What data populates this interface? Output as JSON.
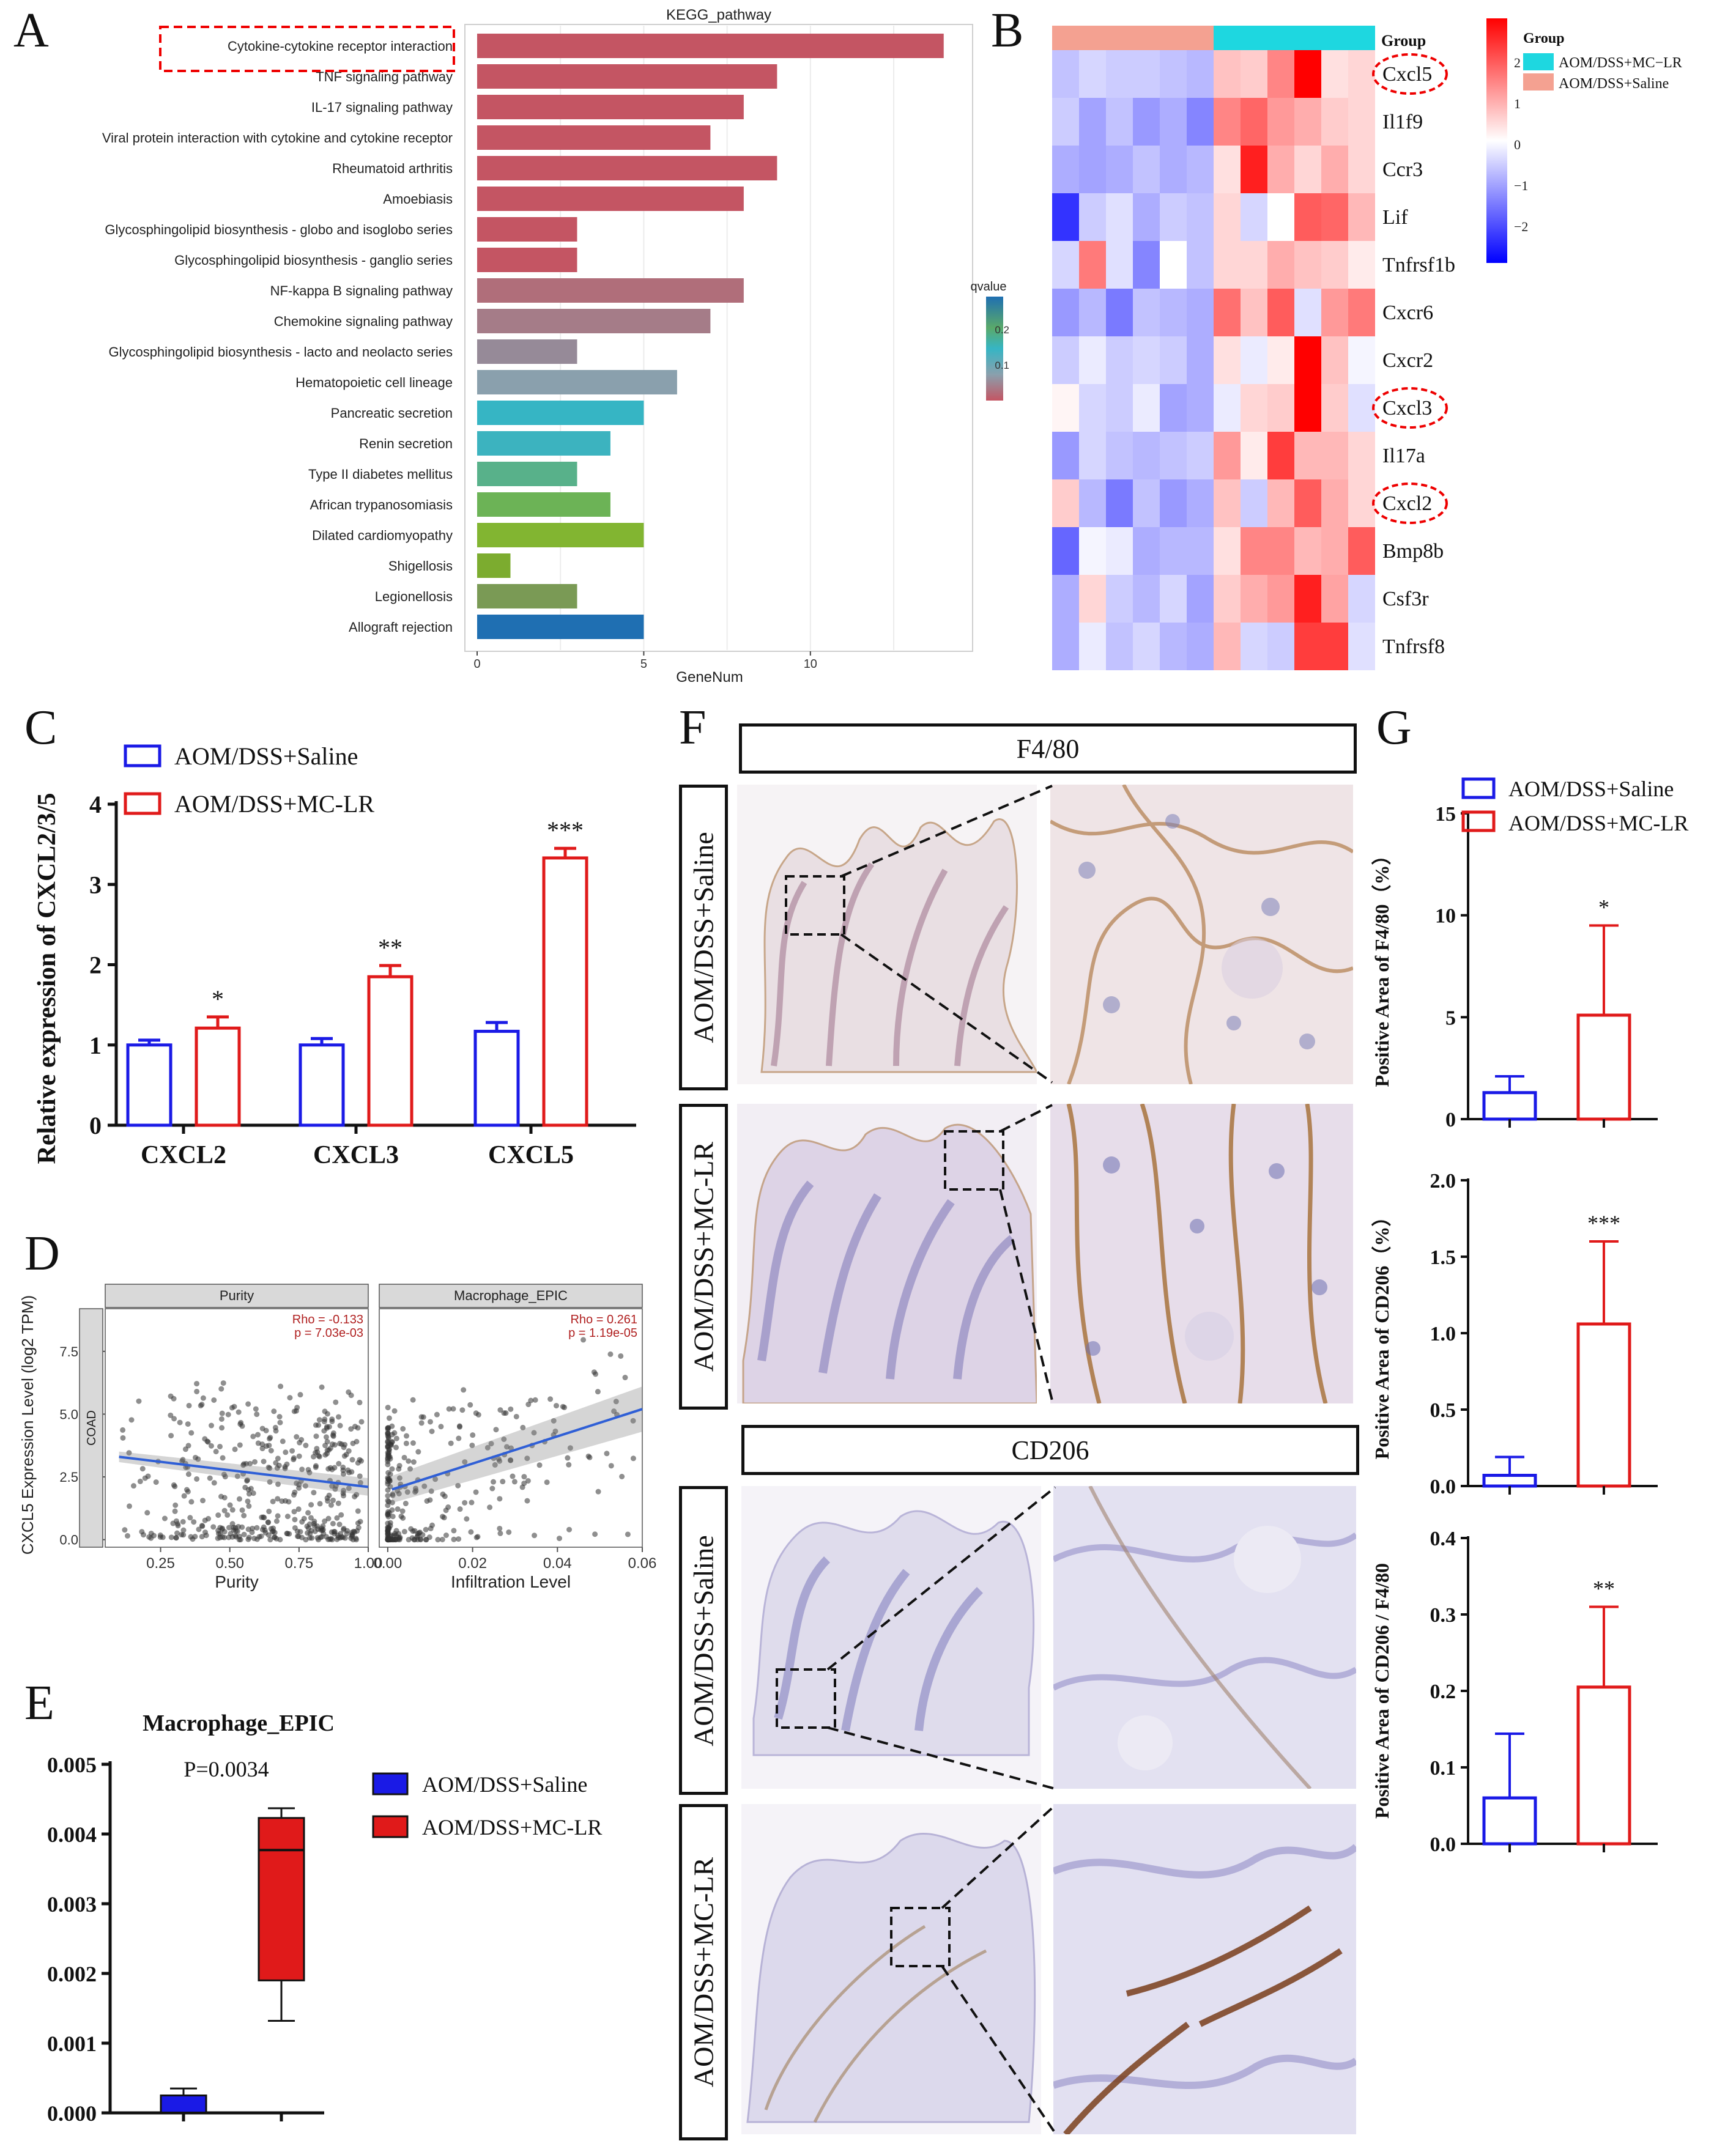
{
  "panels": {
    "A": "A",
    "B": "B",
    "C": "C",
    "D": "D",
    "E": "E",
    "F": "F",
    "G": "G"
  },
  "colors": {
    "saline_blue": "#1a1ae6",
    "mclr_red": "#e01a1a",
    "heat_high": "#ff0000",
    "heat_low": "#0000ff",
    "group_saline": "#f4a191",
    "group_mclr": "#1ed7e0"
  },
  "chart_data": [
    {
      "id": "A",
      "type": "bar",
      "orientation": "horizontal",
      "title": "KEGG_pathway",
      "xlabel": "GeneNum",
      "xticks": [
        "0",
        "5",
        "10"
      ],
      "xlim": [
        0,
        14.5
      ],
      "legend_title": "qvalue",
      "legend_ticks": [
        "0.2",
        "0.1"
      ],
      "categories": [
        "Cytokine-cytokine receptor interaction",
        "TNF signaling pathway",
        "IL-17 signaling pathway",
        "Viral protein interaction with cytokine and cytokine receptor",
        "Rheumatoid arthritis",
        "Amoebiasis",
        "Glycosphingolipid biosynthesis - globo and isoglobo series",
        "Glycosphingolipid biosynthesis - ganglio series",
        "NF-kappa B signaling pathway",
        "Chemokine signaling pathway",
        "Glycosphingolipid biosynthesis - lacto and neolacto series",
        "Hematopoietic cell lineage",
        "Pancreatic secretion",
        "Renin secretion",
        "Type II diabetes mellitus",
        "African trypanosomiasis",
        "Dilated cardiomyopathy",
        "Shigellosis",
        "Legionellosis",
        "Allograft rejection"
      ],
      "values": [
        14,
        9,
        8,
        7,
        9,
        8,
        3,
        3,
        8,
        7,
        3,
        6,
        5,
        4,
        3,
        4,
        5,
        1,
        3,
        5
      ],
      "bar_colors": [
        "#c45563",
        "#c45563",
        "#c45563",
        "#c45563",
        "#c45563",
        "#c45563",
        "#c45563",
        "#c45563",
        "#b06e7a",
        "#a57c88",
        "#968a98",
        "#8aa0ad",
        "#36b5c4",
        "#3cb3bf",
        "#58b18a",
        "#6cb356",
        "#82b531",
        "#7cac2f",
        "#7a9a55",
        "#1f6fb2"
      ],
      "highlighted": "Cytokine-cytokine receptor interaction"
    },
    {
      "id": "B",
      "type": "heatmap",
      "group_label": "Group",
      "legend_title": "Group",
      "groups": [
        "AOM/DSS+MC−LR",
        "AOM/DSS+Saline"
      ],
      "scale_ticks": [
        "2",
        "1",
        "0",
        "−1",
        "−2"
      ],
      "rows": [
        "Cxcl5",
        "Il1f9",
        "Ccr3",
        "Lif",
        "Tnfrsf1b",
        "Cxcr6",
        "Cxcr2",
        "Cxcl3",
        "Il17a",
        "Cxcl2",
        "Bmp8b",
        "Csf3r",
        "Tnfrsf8"
      ],
      "circled_rows": [
        "Cxcl5",
        "Cxcl3",
        "Cxcl2"
      ],
      "column_groups": [
        "AOM/DSS+Saline",
        "AOM/DSS+Saline",
        "AOM/DSS+Saline",
        "AOM/DSS+Saline",
        "AOM/DSS+Saline",
        "AOM/DSS+Saline",
        "AOM/DSS+MC−LR",
        "AOM/DSS+MC−LR",
        "AOM/DSS+MC−LR",
        "AOM/DSS+MC−LR",
        "AOM/DSS+MC−LR",
        "AOM/DSS+MC−LR"
      ],
      "values": [
        [
          -0.6,
          -0.4,
          -0.5,
          -0.5,
          -0.6,
          -0.7,
          0.6,
          0.5,
          1.2,
          2.5,
          0.3,
          0.4
        ],
        [
          -0.5,
          -0.9,
          -0.6,
          -1.0,
          -0.8,
          -1.2,
          1.2,
          1.5,
          1.0,
          0.8,
          0.5,
          0.4
        ],
        [
          -0.8,
          -0.9,
          -0.8,
          -0.6,
          -0.8,
          -0.7,
          0.3,
          2.2,
          0.8,
          0.4,
          0.8,
          0.4
        ],
        [
          -2.0,
          -0.5,
          -0.3,
          -0.8,
          -0.5,
          -0.6,
          0.4,
          -0.4,
          0.0,
          1.6,
          1.5,
          0.7
        ],
        [
          -0.4,
          1.3,
          -0.3,
          -1.2,
          0.0,
          -0.6,
          0.4,
          0.4,
          0.8,
          0.6,
          0.5,
          0.2
        ],
        [
          -1.0,
          -0.7,
          -1.3,
          -0.6,
          -0.7,
          -0.8,
          1.4,
          0.6,
          1.6,
          -0.3,
          1.0,
          1.3
        ],
        [
          -0.5,
          -0.2,
          -0.5,
          -0.4,
          -0.5,
          -0.8,
          0.3,
          -0.2,
          0.2,
          2.5,
          0.6,
          -0.1
        ],
        [
          0.1,
          -0.4,
          -0.5,
          -0.2,
          -0.9,
          -0.8,
          -0.2,
          0.4,
          0.5,
          2.6,
          0.5,
          -0.3
        ],
        [
          -1.0,
          -0.4,
          -0.6,
          -0.7,
          -0.6,
          -0.5,
          1.0,
          0.2,
          1.9,
          0.7,
          0.7,
          0.4
        ],
        [
          0.5,
          -0.7,
          -1.3,
          -0.6,
          -1.0,
          -0.8,
          0.6,
          -0.5,
          0.7,
          1.6,
          0.8,
          0.4
        ],
        [
          -1.5,
          -0.1,
          -0.2,
          -0.8,
          -0.7,
          -0.7,
          0.3,
          1.2,
          1.2,
          0.7,
          0.8,
          1.6
        ],
        [
          -0.8,
          0.4,
          -0.5,
          -0.7,
          -0.4,
          -0.9,
          0.5,
          0.8,
          1.0,
          2.2,
          0.9,
          -0.4
        ],
        [
          -0.8,
          -0.2,
          -0.6,
          -0.4,
          -0.7,
          -0.8,
          0.7,
          -0.4,
          -0.5,
          1.9,
          1.9,
          -0.3
        ]
      ]
    },
    {
      "id": "C",
      "type": "bar",
      "ylabel": "Relative expression of CXCL2/3/5",
      "ylim": [
        0,
        4
      ],
      "yticks": [
        "0",
        "1",
        "2",
        "3",
        "4"
      ],
      "categories": [
        "CXCL2",
        "CXCL3",
        "CXCL5"
      ],
      "series": [
        {
          "name": "AOM/DSS+Saline",
          "values": [
            1.0,
            1.0,
            1.17
          ],
          "errors": [
            0.06,
            0.08,
            0.11
          ]
        },
        {
          "name": "AOM/DSS+MC-LR",
          "values": [
            1.21,
            1.85,
            3.33
          ],
          "errors": [
            0.14,
            0.14,
            0.12
          ]
        }
      ],
      "significance": [
        "*",
        "**",
        "***"
      ]
    },
    {
      "id": "D",
      "type": "scatter",
      "ylabel": "CXCL5 Expression Level (log2 TPM)",
      "row_strip": "COAD",
      "yticks": [
        "7.5",
        "5.0",
        "2.5",
        "0.0"
      ],
      "ylim": [
        -0.3,
        9.2
      ],
      "facets": [
        {
          "name": "Purity",
          "xlabel": "Purity",
          "rho": "Rho = -0.133",
          "p": "p = 7.03e-03",
          "xticks": [
            "0.25",
            "0.50",
            "0.75",
            "1.00"
          ],
          "xlim": [
            0.05,
            1.0
          ],
          "fit_start": [
            0.1,
            3.3
          ],
          "fit_end": [
            1.0,
            2.1
          ],
          "n_points": 440
        },
        {
          "name": "Macrophage_EPIC",
          "xlabel": "Infiltration Level",
          "rho": "Rho = 0.261",
          "p": "p = 1.19e-05",
          "xticks": [
            "0.00",
            "0.02",
            "0.04",
            "0.06"
          ],
          "xlim": [
            -0.002,
            0.06
          ],
          "fit_start": [
            0.001,
            2.0
          ],
          "fit_end": [
            0.06,
            5.2
          ],
          "n_points": 300
        }
      ]
    },
    {
      "id": "E",
      "type": "box",
      "title": "Macrophage_EPIC",
      "annotation": "P=0.0034",
      "ylim": [
        0,
        0.005
      ],
      "yticks": [
        "0.005",
        "0.004",
        "0.003",
        "0.002",
        "0.001",
        "0.000"
      ],
      "series": [
        {
          "name": "AOM/DSS+Saline",
          "min": 0.0,
          "q1": 0.0,
          "median": 0.0,
          "q3": 0.00025,
          "max": 0.00035
        },
        {
          "name": "AOM/DSS+MC-LR",
          "min": 0.00132,
          "q1": 0.0019,
          "median": 0.00377,
          "q3": 0.00423,
          "max": 0.00437
        }
      ]
    },
    {
      "id": "G1",
      "type": "bar",
      "ylabel": "Positive Area of F4/80（%）",
      "ylim": [
        0,
        15
      ],
      "yticks": [
        "15",
        "10",
        "5",
        "0"
      ],
      "series": [
        {
          "name": "AOM/DSS+Saline",
          "value": 1.3,
          "error": 0.8
        },
        {
          "name": "AOM/DSS+MC-LR",
          "value": 5.1,
          "error": 4.4
        }
      ],
      "significance": "*"
    },
    {
      "id": "G2",
      "type": "bar",
      "ylabel": "Positive Area of CD206（%）",
      "ylim": [
        0,
        2.0
      ],
      "yticks": [
        "2.0",
        "1.5",
        "1.0",
        "0.5",
        "0.0"
      ],
      "series": [
        {
          "name": "AOM/DSS+Saline",
          "value": 0.07,
          "error": 0.12
        },
        {
          "name": "AOM/DSS+MC-LR",
          "value": 1.06,
          "error": 0.54
        }
      ],
      "significance": "***"
    },
    {
      "id": "G3",
      "type": "bar",
      "ylabel": "Positive Area of CD206 / F4/80",
      "ylim": [
        0,
        0.4
      ],
      "yticks": [
        "0.4",
        "0.3",
        "0.2",
        "0.1",
        "0.0"
      ],
      "series": [
        {
          "name": "AOM/DSS+Saline",
          "value": 0.06,
          "error": 0.084
        },
        {
          "name": "AOM/DSS+MC-LR",
          "value": 0.205,
          "error": 0.105
        }
      ],
      "significance": "**"
    }
  ],
  "legends": {
    "saline": "AOM/DSS+Saline",
    "mclr": "AOM/DSS+MC-LR"
  },
  "panel_f": {
    "stain_f480": "F4/80",
    "stain_cd206": "CD206",
    "row_saline": "AOM/DSS+Saline",
    "row_mclr": "AOM/DSS+MC-LR"
  }
}
